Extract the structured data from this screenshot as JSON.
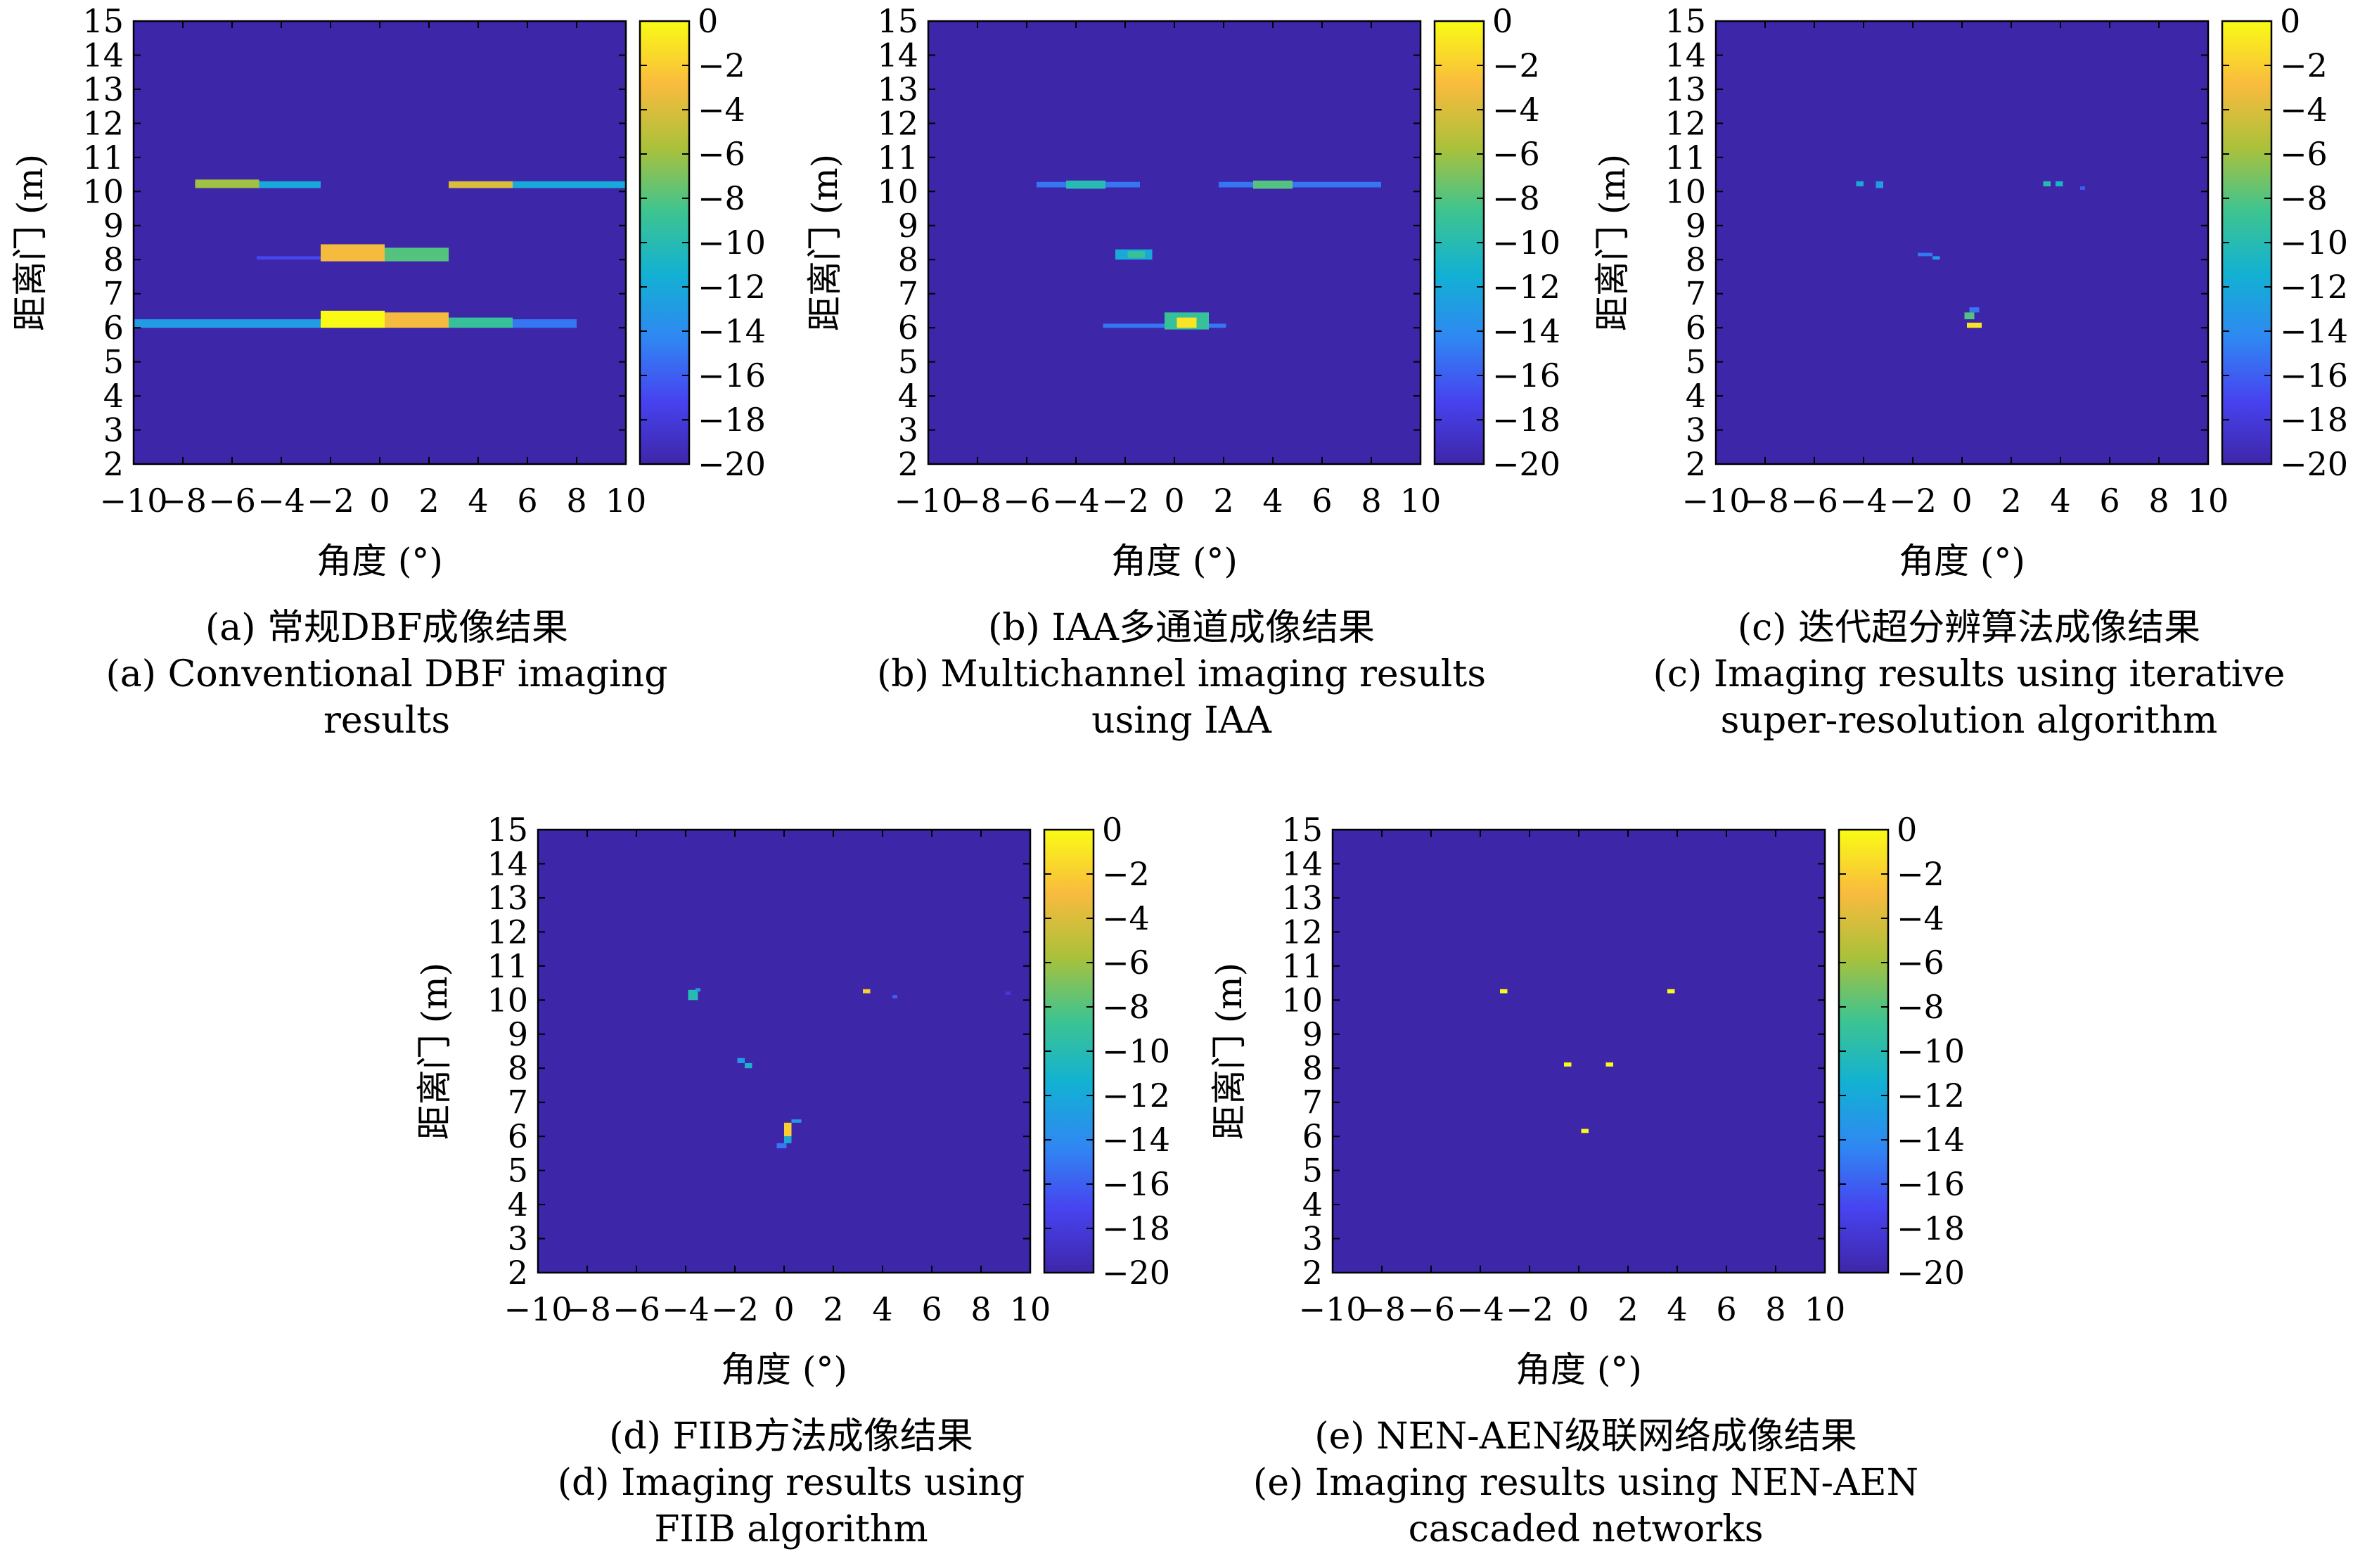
{
  "colors": {
    "background": "#3d26a8",
    "colormap": [
      "#3e26a8",
      "#4743f0",
      "#2f88f2",
      "#12b1d3",
      "#3ec490",
      "#abc13a",
      "#f9bb3e",
      "#f9fb15"
    ]
  },
  "chart_data": [
    {
      "type": "heatmap",
      "id": "a",
      "xlabel": "角度 (°)",
      "ylabel": "距离门 (m)",
      "xlim": [
        -10,
        10
      ],
      "ylim": [
        2,
        15
      ],
      "xticks": [
        "−10",
        "−8",
        "−6",
        "−4",
        "−2",
        "0",
        "2",
        "4",
        "6",
        "8",
        "10"
      ],
      "yticks": [
        "2",
        "3",
        "4",
        "5",
        "6",
        "7",
        "8",
        "9",
        "10",
        "11",
        "12",
        "13",
        "14",
        "15"
      ],
      "colorbar": {
        "range": [
          -20,
          0
        ],
        "ticks": [
          "0",
          "−2",
          "−4",
          "−6",
          "−8",
          "−10",
          "−12",
          "−14",
          "−16",
          "−18",
          "−20"
        ]
      },
      "caption": [
        "(a) 常规DBF成像结果",
        "(a) Conventional DBF imaging",
        "results"
      ],
      "cells": [
        {
          "x0": -7.5,
          "x1": -4.9,
          "y0": 10.1,
          "y1": 10.35,
          "v": -6
        },
        {
          "x0": -4.9,
          "x1": -2.4,
          "y0": 10.1,
          "y1": 10.3,
          "v": -12
        },
        {
          "x0": 2.8,
          "x1": 5.4,
          "y0": 10.1,
          "y1": 10.3,
          "v": -4
        },
        {
          "x0": 5.4,
          "x1": 10,
          "y0": 10.1,
          "y1": 10.3,
          "v": -12
        },
        {
          "x0": -5,
          "x1": -2.4,
          "y0": 8.0,
          "y1": 8.1,
          "v": -17
        },
        {
          "x0": -2.4,
          "x1": 0.2,
          "y0": 7.95,
          "y1": 8.45,
          "v": -3
        },
        {
          "x0": 0.2,
          "x1": 2.8,
          "y0": 7.95,
          "y1": 8.35,
          "v": -8
        },
        {
          "x0": -10,
          "x1": -2.4,
          "y0": 6.0,
          "y1": 6.25,
          "v": -13
        },
        {
          "x0": -2.4,
          "x1": 0.2,
          "y0": 6.0,
          "y1": 6.5,
          "v": 0
        },
        {
          "x0": 0.2,
          "x1": 2.8,
          "y0": 6.0,
          "y1": 6.45,
          "v": -3
        },
        {
          "x0": 2.8,
          "x1": 5.4,
          "y0": 6.0,
          "y1": 6.3,
          "v": -9
        },
        {
          "x0": 5.4,
          "x1": 8.0,
          "y0": 6.0,
          "y1": 6.25,
          "v": -15
        }
      ]
    },
    {
      "type": "heatmap",
      "id": "b",
      "xlabel": "角度 (°)",
      "ylabel": "距离门 (m)",
      "xlim": [
        -10,
        10
      ],
      "ylim": [
        2,
        15
      ],
      "xticks": [
        "−10",
        "−8",
        "−6",
        "−4",
        "−2",
        "0",
        "2",
        "4",
        "6",
        "8",
        "10"
      ],
      "yticks": [
        "2",
        "3",
        "4",
        "5",
        "6",
        "7",
        "8",
        "9",
        "10",
        "11",
        "12",
        "13",
        "14",
        "15"
      ],
      "colorbar": {
        "range": [
          -20,
          0
        ],
        "ticks": [
          "0",
          "−2",
          "−4",
          "−6",
          "−8",
          "−10",
          "−12",
          "−14",
          "−16",
          "−18",
          "−20"
        ]
      },
      "caption": [
        "(b) IAA多通道成像结果",
        "(b) Multichannel imaging results",
        "using IAA"
      ],
      "cells": [
        {
          "x0": -5.6,
          "x1": -1.4,
          "y0": 10.12,
          "y1": 10.28,
          "v": -15
        },
        {
          "x0": -4.4,
          "x1": -2.8,
          "y0": 10.08,
          "y1": 10.32,
          "v": -10
        },
        {
          "x0": 1.8,
          "x1": 8.4,
          "y0": 10.12,
          "y1": 10.28,
          "v": -15
        },
        {
          "x0": 3.2,
          "x1": 4.8,
          "y0": 10.08,
          "y1": 10.32,
          "v": -8
        },
        {
          "x0": -2.4,
          "x1": -0.9,
          "y0": 8.0,
          "y1": 8.3,
          "v": -12
        },
        {
          "x0": -1.9,
          "x1": -1.2,
          "y0": 8.05,
          "y1": 8.25,
          "v": -9
        },
        {
          "x0": -2.9,
          "x1": 2.1,
          "y0": 6.0,
          "y1": 6.12,
          "v": -15
        },
        {
          "x0": -0.4,
          "x1": 1.4,
          "y0": 5.95,
          "y1": 6.45,
          "v": -9
        },
        {
          "x0": 0.1,
          "x1": 0.9,
          "y0": 6.0,
          "y1": 6.3,
          "v": -1
        }
      ]
    },
    {
      "type": "heatmap",
      "id": "c",
      "xlabel": "角度 (°)",
      "ylabel": "距离门 (m)",
      "xlim": [
        -10,
        10
      ],
      "ylim": [
        2,
        15
      ],
      "xticks": [
        "−10",
        "−8",
        "−6",
        "−4",
        "−2",
        "0",
        "2",
        "4",
        "6",
        "8",
        "10"
      ],
      "yticks": [
        "2",
        "3",
        "4",
        "5",
        "6",
        "7",
        "8",
        "9",
        "10",
        "11",
        "12",
        "13",
        "14",
        "15"
      ],
      "colorbar": {
        "range": [
          -20,
          0
        ],
        "ticks": [
          "0",
          "−2",
          "−4",
          "−6",
          "−8",
          "−10",
          "−12",
          "−14",
          "−16",
          "−18",
          "−20"
        ]
      },
      "caption": [
        "(c) 迭代超分辨算法成像结果",
        "(c) Imaging results using iterative",
        "super-resolution algorithm"
      ],
      "cells": [
        {
          "x0": -4.3,
          "x1": -4.0,
          "y0": 10.15,
          "y1": 10.3,
          "v": -12
        },
        {
          "x0": -3.5,
          "x1": -3.2,
          "y0": 10.1,
          "y1": 10.3,
          "v": -13
        },
        {
          "x0": 3.3,
          "x1": 3.6,
          "y0": 10.15,
          "y1": 10.3,
          "v": -10
        },
        {
          "x0": 3.8,
          "x1": 4.1,
          "y0": 10.15,
          "y1": 10.3,
          "v": -11
        },
        {
          "x0": 4.8,
          "x1": 5.0,
          "y0": 10.05,
          "y1": 10.15,
          "v": -16
        },
        {
          "x0": -1.8,
          "x1": -1.2,
          "y0": 8.1,
          "y1": 8.2,
          "v": -15
        },
        {
          "x0": -1.2,
          "x1": -0.9,
          "y0": 8.0,
          "y1": 8.1,
          "v": -13
        },
        {
          "x0": 0.3,
          "x1": 0.7,
          "y0": 6.45,
          "y1": 6.6,
          "v": -15
        },
        {
          "x0": 0.1,
          "x1": 0.5,
          "y0": 6.25,
          "y1": 6.45,
          "v": -8
        },
        {
          "x0": 0.2,
          "x1": 0.8,
          "y0": 6.0,
          "y1": 6.15,
          "v": -1
        }
      ]
    },
    {
      "type": "heatmap",
      "id": "d",
      "xlabel": "角度 (°)",
      "ylabel": "距离门 (m)",
      "xlim": [
        -10,
        10
      ],
      "ylim": [
        2,
        15
      ],
      "xticks": [
        "−10",
        "−8",
        "−6",
        "−4",
        "−2",
        "0",
        "2",
        "4",
        "6",
        "8",
        "10"
      ],
      "yticks": [
        "2",
        "3",
        "4",
        "5",
        "6",
        "7",
        "8",
        "9",
        "10",
        "11",
        "12",
        "13",
        "14",
        "15"
      ],
      "colorbar": {
        "range": [
          -20,
          0
        ],
        "ticks": [
          "0",
          "−2",
          "−4",
          "−6",
          "−8",
          "−10",
          "−12",
          "−14",
          "−16",
          "−18",
          "−20"
        ]
      },
      "caption": [
        "(d) FIIB方法成像结果",
        "(d) Imaging results using",
        "FIIB algorithm"
      ],
      "cells": [
        {
          "x0": -3.9,
          "x1": -3.5,
          "y0": 10.0,
          "y1": 10.3,
          "v": -10
        },
        {
          "x0": -3.6,
          "x1": -3.4,
          "y0": 10.25,
          "y1": 10.35,
          "v": -13
        },
        {
          "x0": 3.2,
          "x1": 3.5,
          "y0": 10.2,
          "y1": 10.32,
          "v": -2
        },
        {
          "x0": 4.4,
          "x1": 4.6,
          "y0": 10.05,
          "y1": 10.15,
          "v": -16
        },
        {
          "x0": 9.0,
          "x1": 9.2,
          "y0": 10.15,
          "y1": 10.25,
          "v": -18
        },
        {
          "x0": -1.9,
          "x1": -1.6,
          "y0": 8.15,
          "y1": 8.3,
          "v": -13
        },
        {
          "x0": -1.6,
          "x1": -1.3,
          "y0": 8.0,
          "y1": 8.15,
          "v": -11
        },
        {
          "x0": 0.0,
          "x1": 0.3,
          "y0": 6.0,
          "y1": 6.4,
          "v": -2
        },
        {
          "x0": 0.3,
          "x1": 0.7,
          "y0": 6.4,
          "y1": 6.5,
          "v": -13
        },
        {
          "x0": -0.3,
          "x1": 0.1,
          "y0": 5.65,
          "y1": 5.8,
          "v": -15
        },
        {
          "x0": 0.0,
          "x1": 0.3,
          "y0": 5.8,
          "y1": 6.0,
          "v": -12
        }
      ]
    },
    {
      "type": "heatmap",
      "id": "e",
      "xlabel": "角度 (°)",
      "ylabel": "距离门 (m)",
      "xlim": [
        -10,
        10
      ],
      "ylim": [
        2,
        15
      ],
      "xticks": [
        "−10",
        "−8",
        "−6",
        "−4",
        "−2",
        "0",
        "2",
        "4",
        "6",
        "8",
        "10"
      ],
      "yticks": [
        "2",
        "3",
        "4",
        "5",
        "6",
        "7",
        "8",
        "9",
        "10",
        "11",
        "12",
        "13",
        "14",
        "15"
      ],
      "colorbar": {
        "range": [
          -20,
          0
        ],
        "ticks": [
          "0",
          "−2",
          "−4",
          "−6",
          "−8",
          "−10",
          "−12",
          "−14",
          "−16",
          "−18",
          "−20"
        ]
      },
      "caption": [
        "(e) NEN-AEN级联网络成像结果",
        "(e) Imaging results using NEN-AEN",
        "cascaded networks"
      ],
      "cells": [
        {
          "x0": -3.2,
          "x1": -2.9,
          "y0": 10.2,
          "y1": 10.32,
          "v": 0
        },
        {
          "x0": 3.6,
          "x1": 3.9,
          "y0": 10.2,
          "y1": 10.32,
          "v": 0
        },
        {
          "x0": -0.6,
          "x1": -0.3,
          "y0": 8.05,
          "y1": 8.17,
          "v": 0
        },
        {
          "x0": 1.1,
          "x1": 1.4,
          "y0": 8.05,
          "y1": 8.17,
          "v": 0
        },
        {
          "x0": 0.1,
          "x1": 0.4,
          "y0": 6.1,
          "y1": 6.22,
          "v": 0
        }
      ]
    }
  ]
}
